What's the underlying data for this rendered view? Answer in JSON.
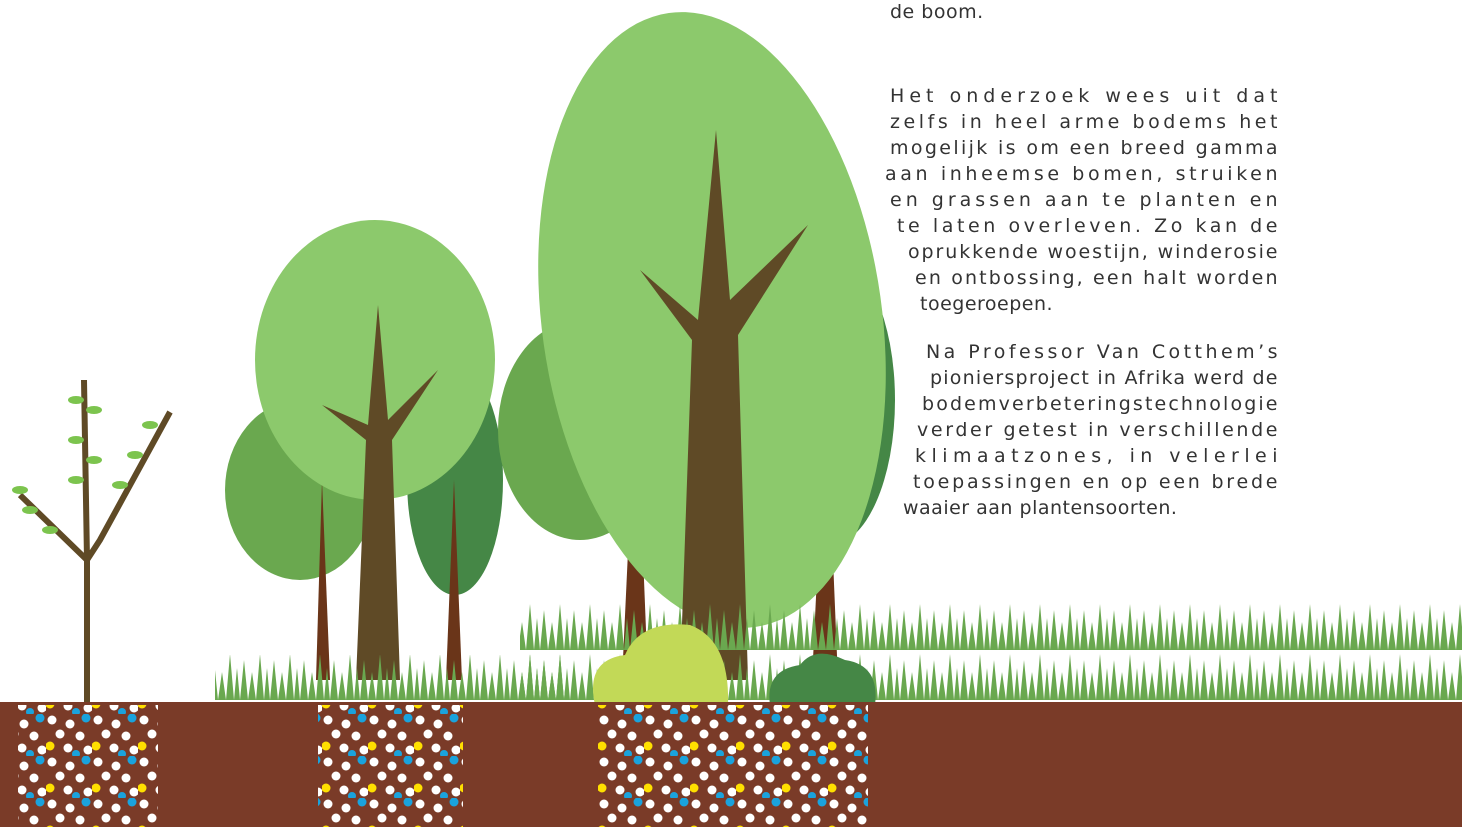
{
  "paragraphs": [
    [
      "de boom."
    ],
    [
      "Het onderzoek wees uit dat",
      "zelfs in heel arme bodems het",
      "mogelijk is om een breed gamma",
      "aan inheemse bomen, struiken",
      "en grassen aan te planten en",
      "te laten overleven.  Zo kan de",
      "oprukkende woestijn, winderosie",
      "en ontbossing, een halt worden",
      "toegeroepen."
    ],
    [
      "Na Professor Van Cotthem’s",
      "pioniersproject in Afrika werd de",
      "bodemverbeteringstechnologie",
      "verder getest in verschillende",
      "klimaatzones, in velerlei",
      "toepassingen en op een brede",
      "waaier aan plantensoorten."
    ]
  ]
}
